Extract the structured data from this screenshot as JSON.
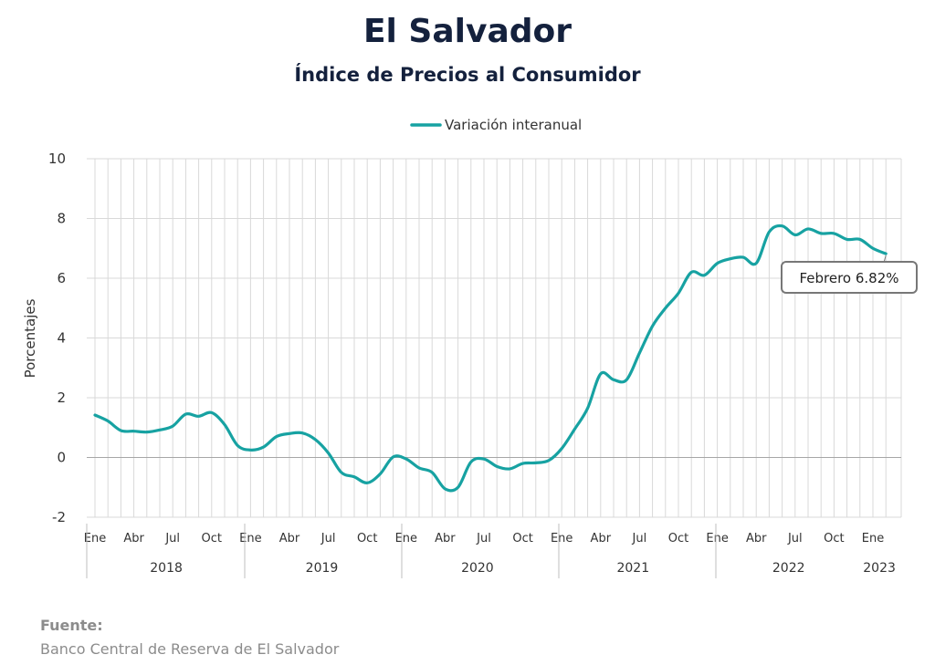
{
  "chart_data": {
    "type": "line",
    "title": "El Salvador",
    "subtitle": "Índice de Precios al Consumidor",
    "ylabel": "Porcentajes",
    "xlabel": "",
    "ylim": [
      -2,
      10
    ],
    "yticks": [
      -2,
      0,
      2,
      4,
      6,
      8,
      10
    ],
    "grid": true,
    "legend_position": "top",
    "negative_tick_color": "#e00000",
    "month_tick_labels": [
      "Ene",
      "Abr",
      "Jul",
      "Oct"
    ],
    "years": [
      "2018",
      "2019",
      "2020",
      "2021",
      "2022",
      "2023"
    ],
    "start": "2018-01",
    "series": [
      {
        "name": "Variación interanual",
        "color": "#17a2a2",
        "values": [
          1.42,
          1.22,
          0.9,
          0.88,
          0.85,
          0.92,
          1.05,
          1.45,
          1.38,
          1.5,
          1.1,
          0.4,
          0.25,
          0.35,
          0.7,
          0.8,
          0.82,
          0.6,
          0.15,
          -0.5,
          -0.65,
          -0.85,
          -0.55,
          0.02,
          -0.05,
          -0.35,
          -0.5,
          -1.05,
          -1.0,
          -0.15,
          -0.05,
          -0.3,
          -0.38,
          -0.2,
          -0.18,
          -0.1,
          0.3,
          0.95,
          1.65,
          2.8,
          2.6,
          2.6,
          3.5,
          4.4,
          5.0,
          5.5,
          6.2,
          6.1,
          6.5,
          6.65,
          6.7,
          6.5,
          7.55,
          7.75,
          7.45,
          7.65,
          7.5,
          7.5,
          7.3,
          7.3,
          7.0,
          6.82
        ]
      }
    ],
    "annotation": {
      "text": "Febrero 6.82%",
      "value": 6.82,
      "month": "2023-02"
    }
  },
  "source": {
    "label": "Fuente:",
    "text": "Banco Central de Reserva de El Salvador"
  }
}
